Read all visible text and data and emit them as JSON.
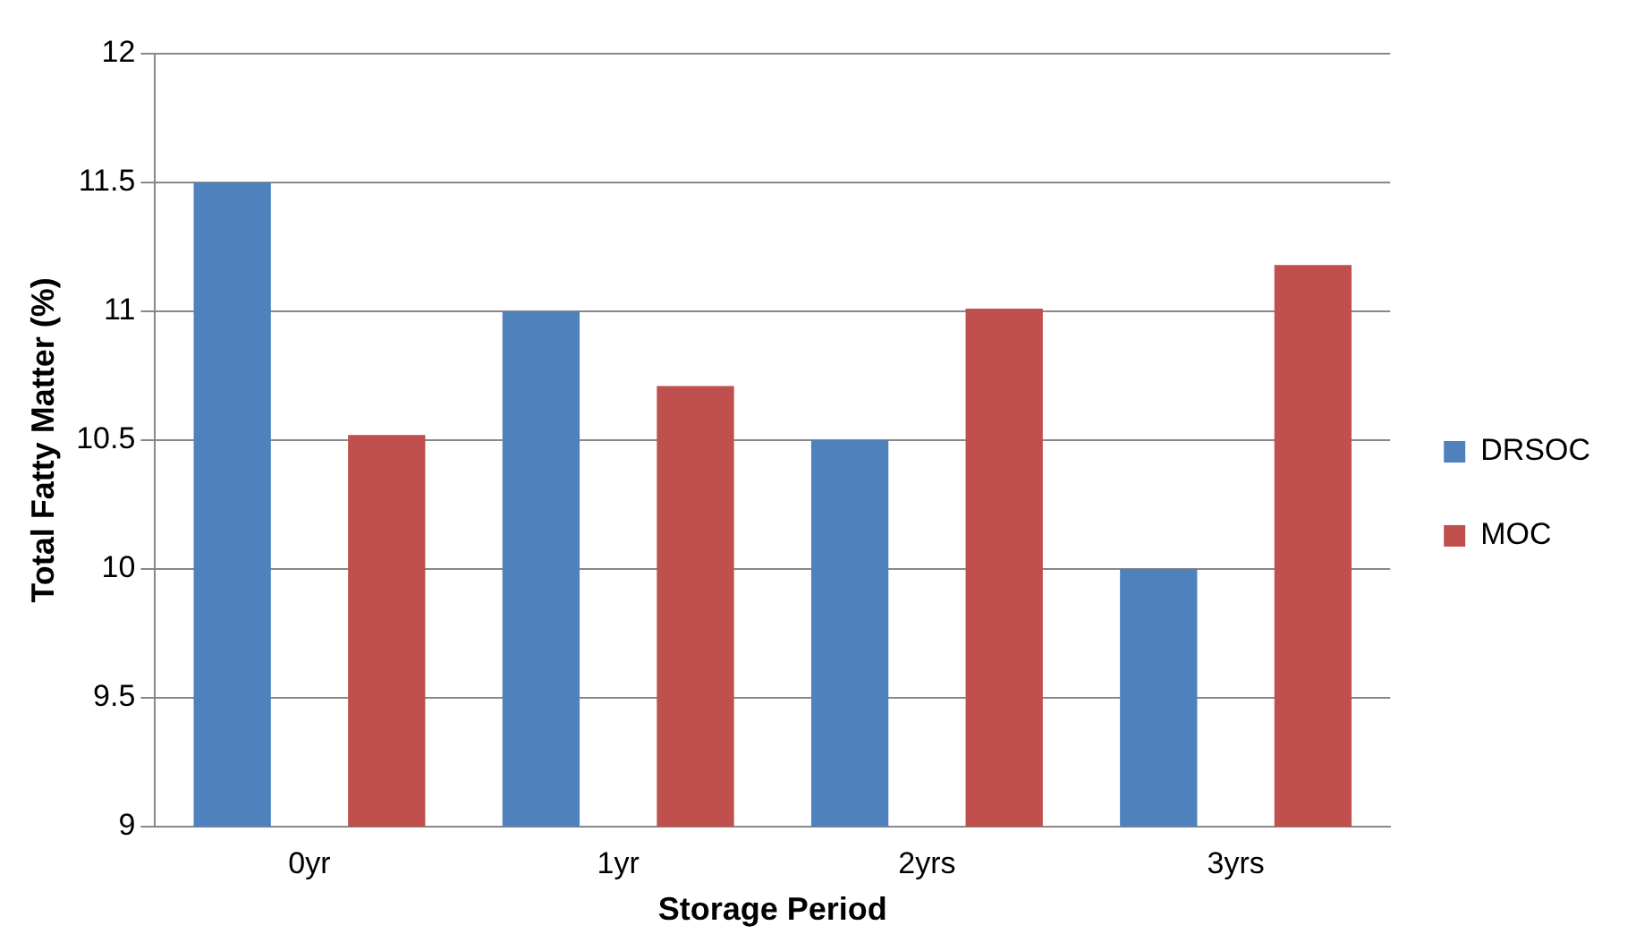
{
  "chart_data": {
    "type": "bar",
    "xlabel": "Storage Period",
    "ylabel": "Total Fatty Matter (%)",
    "categories": [
      "0yr",
      "1yr",
      "2yrs",
      "3yrs"
    ],
    "series": [
      {
        "name": "DRSOC",
        "color": "#4f81bd",
        "values": [
          11.5,
          11,
          10.5,
          10
        ]
      },
      {
        "name": "MOC",
        "color": "#c0504d",
        "values": [
          10.52,
          10.71,
          11.01,
          11.18
        ]
      }
    ],
    "ylim": [
      9,
      12
    ],
    "yticks": [
      9,
      9.5,
      10,
      10.5,
      11,
      11.5,
      12
    ],
    "grid": "y",
    "legend": "right"
  }
}
